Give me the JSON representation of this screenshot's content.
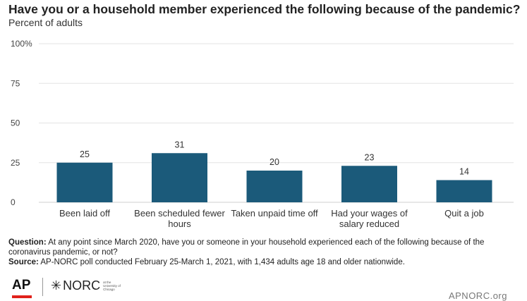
{
  "header": {
    "title": "Have you or a household member experienced the following because of the pandemic?",
    "subtitle": "Percent of adults"
  },
  "chart_data": {
    "type": "bar",
    "categories": [
      [
        "Been laid off"
      ],
      [
        "Been scheduled fewer",
        "hours"
      ],
      [
        "Taken unpaid time off"
      ],
      [
        "Had your wages of",
        "salary reduced"
      ],
      [
        "Quit a job"
      ]
    ],
    "values": [
      25,
      31,
      20,
      23,
      14
    ],
    "ylim": [
      0,
      100
    ],
    "yticks": [
      0,
      25,
      50,
      75,
      100
    ],
    "ytick_labels": [
      "0",
      "25",
      "50",
      "75",
      "100%"
    ],
    "grid": true,
    "bar_color": "#1b5a7a"
  },
  "notes": {
    "question_label": "Question:",
    "question_text": "At any point since March 2020, have you or someone in your household experienced each of the following because of the coronavirus pandemic, or not?",
    "source_label": "Source:",
    "source_text": "AP-NORC poll conducted February 25-March 1, 2021, with 1,434 adults age 18 and older nationwide."
  },
  "footer": {
    "ap_logo": "AP",
    "norc_logo": "NORC",
    "norc_small": "at the University of Chicago",
    "site": "APNORC.org"
  },
  "colors": {
    "accent_red": "#e0211b",
    "grid": "#e3e3e3"
  }
}
